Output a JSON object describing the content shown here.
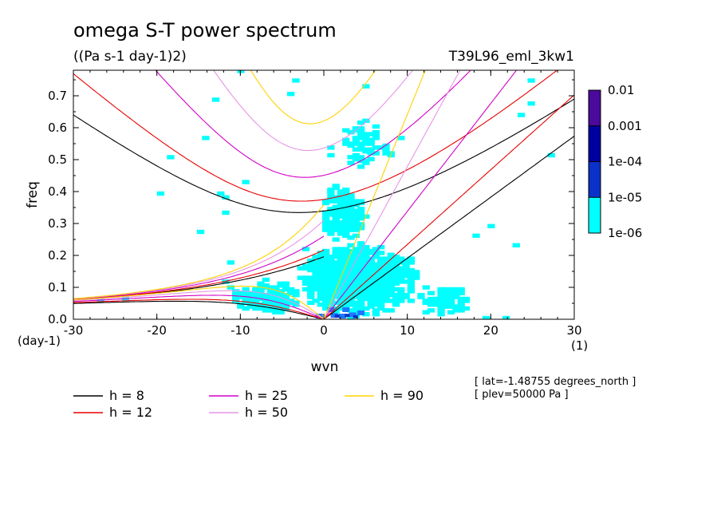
{
  "chart_data": {
    "type": "heatmap",
    "title": "omega S-T power spectrum",
    "subtitle": "((Pa s-1 day-1)2)",
    "experiment": "T39L96_eml_3kw1",
    "xlabel": "wvn",
    "ylabel": "freq",
    "x_unit": "(1)",
    "y_unit": "(day-1)",
    "xlim": [
      -30,
      30
    ],
    "ylim": [
      0,
      0.78
    ],
    "x_ticks": [
      "-30",
      "-20",
      "-10",
      "0",
      "10",
      "20",
      "30"
    ],
    "y_ticks": [
      "0.0",
      "0.1",
      "0.2",
      "0.3",
      "0.4",
      "0.5",
      "0.6",
      "0.7"
    ],
    "colorbar": {
      "levels": [
        "1e-06",
        "1e-05",
        "1e-04",
        "0.001",
        "0.01"
      ],
      "colors": [
        "#00ffff",
        "#1e78ff",
        "#0a32c8",
        "#0000a0",
        "#4b0a9b"
      ]
    },
    "dispersion_curves": {
      "equivalent_depths_m": [
        8,
        12,
        25,
        50,
        90
      ],
      "colors": [
        "#000000",
        "#e60000",
        "#d200c8",
        "#e696e6",
        "#ffd200"
      ],
      "legend_labels": [
        "h =  8",
        "h = 12",
        "h = 25",
        "h = 50",
        "h = 90"
      ]
    },
    "annotations": [
      "[ lat=-1.48755 degrees_north ]",
      "[ plev=50000 Pa ]"
    ]
  }
}
